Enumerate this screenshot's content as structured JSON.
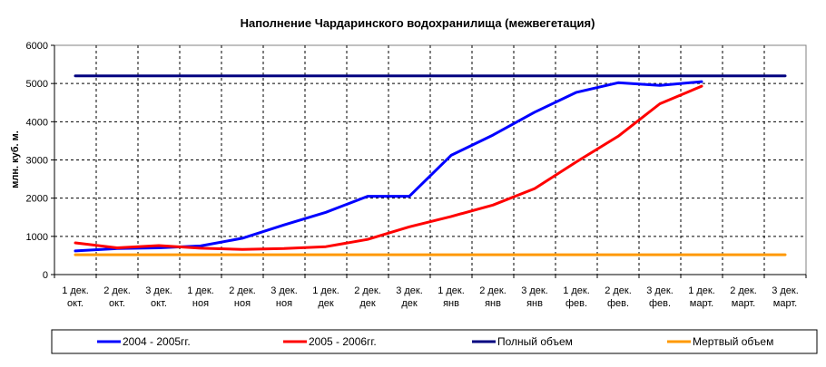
{
  "chart_data": {
    "type": "line",
    "title": "Наполнение Чардаринского водохранилища (межвегетация)",
    "ylabel": "млн. куб. м.",
    "xlabel": "",
    "ylim": [
      0,
      6000
    ],
    "yticks": [
      0,
      1000,
      2000,
      3000,
      4000,
      5000,
      6000
    ],
    "grid": true,
    "legend_position": "bottom",
    "categories": [
      [
        "1 дек.",
        "окт."
      ],
      [
        "2 дек.",
        "окт."
      ],
      [
        "3 дек.",
        "окт."
      ],
      [
        "1 дек.",
        "ноя"
      ],
      [
        "2 дек.",
        "ноя"
      ],
      [
        "3 дек.",
        "ноя"
      ],
      [
        "1 дек.",
        "дек"
      ],
      [
        "2 дек.",
        "дек"
      ],
      [
        "3 дек.",
        "дек"
      ],
      [
        "1 дек.",
        "янв"
      ],
      [
        "2 дек.",
        "янв"
      ],
      [
        "3 дек.",
        "янв"
      ],
      [
        "1 дек.",
        "фев."
      ],
      [
        "2 дек.",
        "фев."
      ],
      [
        "3 дек.",
        "фев."
      ],
      [
        "1 дек.",
        "март."
      ],
      [
        "2 дек.",
        "март."
      ],
      [
        "3 дек.",
        "март."
      ]
    ],
    "series": [
      {
        "name": "2004 - 2005гг.",
        "color": "#0000ff",
        "values": [
          620,
          680,
          700,
          750,
          950,
          1300,
          1630,
          2050,
          2050,
          3120,
          3650,
          4250,
          4770,
          5020,
          4950,
          5050,
          null,
          null
        ]
      },
      {
        "name": "2005 - 2006гг.",
        "color": "#ff0000",
        "values": [
          830,
          700,
          760,
          690,
          660,
          680,
          730,
          920,
          1250,
          1520,
          1820,
          2250,
          2950,
          3620,
          4470,
          4930,
          null,
          null
        ]
      },
      {
        "name": "Полный объем",
        "color": "#000080",
        "values": [
          5200,
          5200,
          5200,
          5200,
          5200,
          5200,
          5200,
          5200,
          5200,
          5200,
          5200,
          5200,
          5200,
          5200,
          5200,
          5200,
          5200,
          5200
        ]
      },
      {
        "name": "Мертвый объем",
        "color": "#ff9900",
        "values": [
          520,
          520,
          520,
          520,
          520,
          520,
          520,
          520,
          520,
          520,
          520,
          520,
          520,
          520,
          520,
          520,
          520,
          520
        ]
      }
    ]
  }
}
